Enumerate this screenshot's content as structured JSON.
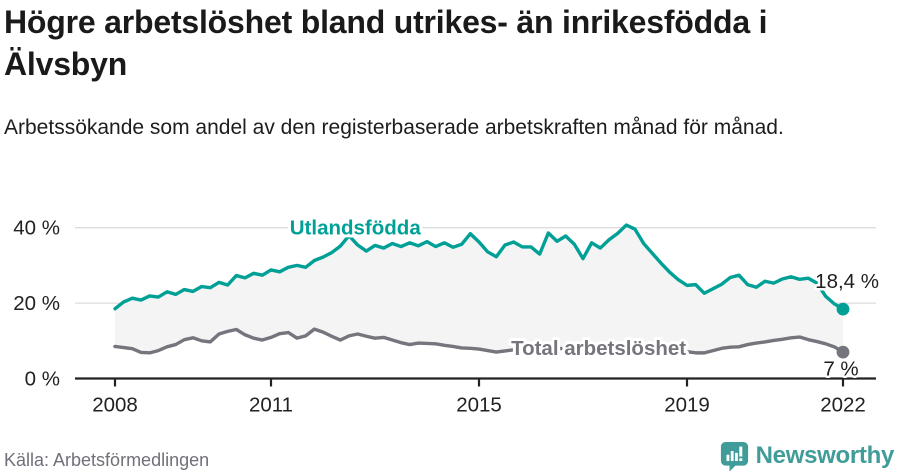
{
  "header": {
    "title": "Högre arbetslöshet bland utrikes- än inrikesfödda i Älvsbyn",
    "subtitle": "Arbetssökande som andel av den registerbaserade arbetskraften månad för månad."
  },
  "footer": {
    "source": "Källa: Arbetsförmedlingen",
    "brand": "Newsworthy",
    "brand_color": "#3f9c98"
  },
  "chart_data": {
    "type": "line",
    "x_start": 2008,
    "x_end": 2022,
    "points_per_year": 6,
    "ylim": [
      0,
      44
    ],
    "grid": "horizontal-only",
    "legend_position": "inline-labels",
    "colors": {
      "grid": "#dcdcdc",
      "axis": "#222222",
      "tick_label": "#222222",
      "fill_between": "#f4f4f4",
      "halo": "#ffffff",
      "end_label": "#1f1f1f"
    },
    "y_ticks": [
      {
        "value": 0,
        "label": "0 %"
      },
      {
        "value": 20,
        "label": "20 %"
      },
      {
        "value": 40,
        "label": "40 %"
      }
    ],
    "x_ticks": [
      {
        "year": 2008,
        "label": "2008"
      },
      {
        "year": 2011,
        "label": "2011"
      },
      {
        "year": 2015,
        "label": "2015"
      },
      {
        "year": 2019,
        "label": "2019"
      },
      {
        "year": 2022,
        "label": "2022"
      }
    ],
    "series": [
      {
        "name": "Utlandsfödda",
        "slug": "utlandsfodda",
        "color": "#00a097",
        "end_label": "18,4 %",
        "end_value": 18.4,
        "label_at": {
          "x": 2012.62,
          "y": 40.0
        },
        "values": [
          18.5,
          20.3,
          21.3,
          20.8,
          21.9,
          21.6,
          23.0,
          22.3,
          23.6,
          23.1,
          24.4,
          24.1,
          25.5,
          24.8,
          27.3,
          26.7,
          27.9,
          27.4,
          28.8,
          28.3,
          29.5,
          30.0,
          29.5,
          31.3,
          32.2,
          33.4,
          35.1,
          37.9,
          35.4,
          33.8,
          35.3,
          34.6,
          35.8,
          35.0,
          36.0,
          35.2,
          36.3,
          35.0,
          36.0,
          34.8,
          35.6,
          38.4,
          36.2,
          33.6,
          32.3,
          35.4,
          36.2,
          34.9,
          34.9,
          33.0,
          38.6,
          36.4,
          37.8,
          35.6,
          31.8,
          36.0,
          34.6,
          36.8,
          38.5,
          40.7,
          39.6,
          35.8,
          33.2,
          30.6,
          28.2,
          26.2,
          24.7,
          24.9,
          22.6,
          23.8,
          25.0,
          26.8,
          27.4,
          24.9,
          24.2,
          25.8,
          25.3,
          26.4,
          27.0,
          26.3,
          26.6,
          25.3,
          21.8,
          19.8,
          18.4
        ]
      },
      {
        "name": "Total arbetslöshet",
        "slug": "total-arbetsloshet",
        "color": "#75757d",
        "end_label": "7 %",
        "end_value": 7.0,
        "label_at": {
          "x": 2017.3,
          "y": 8.1
        },
        "values": [
          8.5,
          8.2,
          7.9,
          6.9,
          6.8,
          7.4,
          8.4,
          9.0,
          10.3,
          10.8,
          10.0,
          9.7,
          11.8,
          12.5,
          13.0,
          11.6,
          10.7,
          10.2,
          10.9,
          11.9,
          12.2,
          10.7,
          11.3,
          13.1,
          12.3,
          11.2,
          10.2,
          11.3,
          11.8,
          11.2,
          10.7,
          10.9,
          10.2,
          9.5,
          9.0,
          9.4,
          9.3,
          9.2,
          8.8,
          8.5,
          8.1,
          8.0,
          7.8,
          7.4,
          7.0,
          7.3,
          7.6,
          7.4,
          7.7,
          7.9,
          7.6,
          7.8,
          8.1,
          7.9,
          8.2,
          8.0,
          8.3,
          8.1,
          8.4,
          8.2,
          8.5,
          8.3,
          8.0,
          7.8,
          7.6,
          7.3,
          7.1,
          6.8,
          6.8,
          7.4,
          8.0,
          8.3,
          8.4,
          9.0,
          9.4,
          9.7,
          10.1,
          10.4,
          10.8,
          11.0,
          10.3,
          9.8,
          9.2,
          8.4,
          7.0
        ]
      }
    ]
  }
}
